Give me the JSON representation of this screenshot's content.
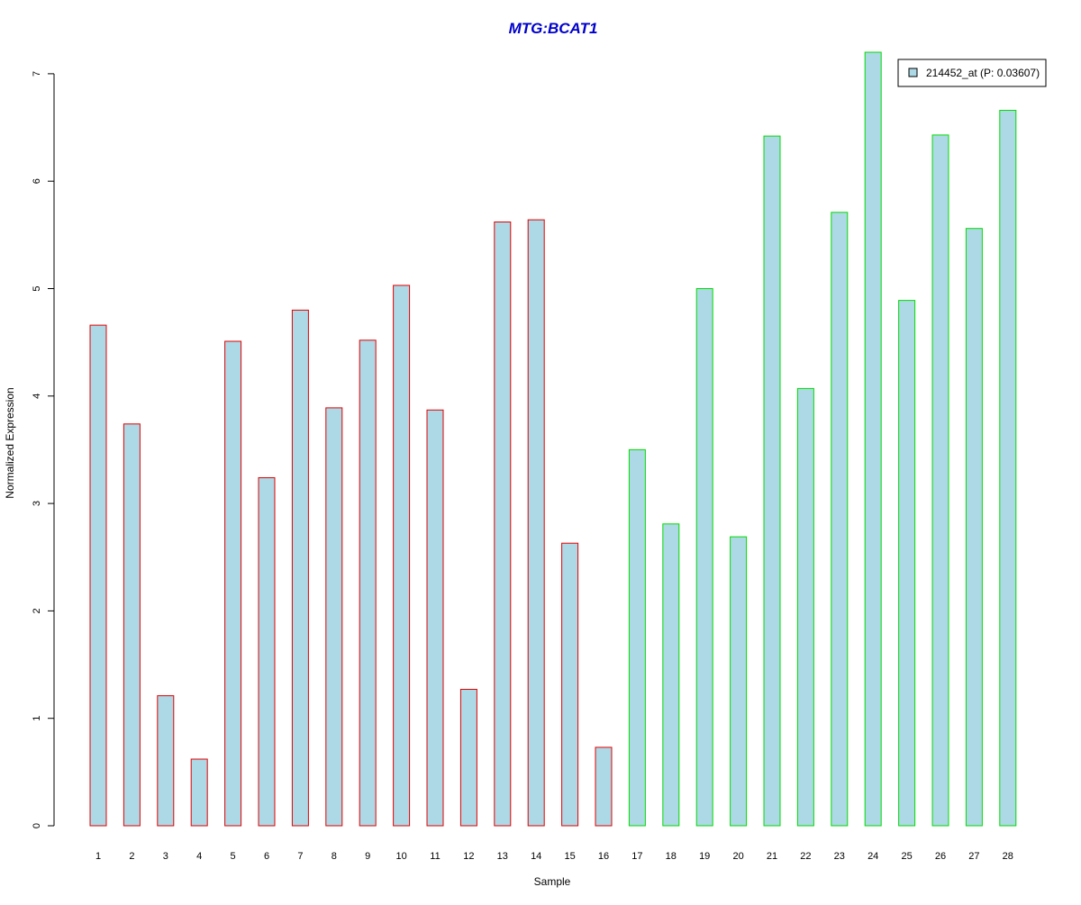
{
  "chart_data": {
    "type": "bar",
    "title": "MTG:BCAT1",
    "xlabel": "Sample",
    "ylabel": "Normalized Expression",
    "ylim": [
      0,
      7.2
    ],
    "yticks": [
      0,
      1,
      2,
      3,
      4,
      5,
      6,
      7
    ],
    "categories": [
      "1",
      "2",
      "3",
      "4",
      "5",
      "6",
      "7",
      "8",
      "9",
      "10",
      "11",
      "12",
      "13",
      "14",
      "15",
      "16",
      "17",
      "18",
      "19",
      "20",
      "21",
      "22",
      "23",
      "24",
      "25",
      "26",
      "27",
      "28"
    ],
    "series": [
      {
        "name": "214452_at (P: 0.03607)",
        "values": [
          4.66,
          3.74,
          1.21,
          0.62,
          4.51,
          3.24,
          4.8,
          3.89,
          4.52,
          5.03,
          3.87,
          1.27,
          5.62,
          5.64,
          2.63,
          0.73,
          3.5,
          2.81,
          5.0,
          2.69,
          6.42,
          4.07,
          5.71,
          7.2,
          4.89,
          6.43,
          5.56,
          6.66
        ]
      }
    ],
    "groups": [
      {
        "samples": [
          1,
          16
        ],
        "border_color": "#e00000"
      },
      {
        "samples": [
          17,
          28
        ],
        "border_color": "#00dd00"
      }
    ],
    "legend": {
      "label": "214452_at (P: 0.03607)",
      "placement": "top-right"
    },
    "grid": false
  },
  "colors": {
    "title": "#0000cc",
    "bar_fill": "#add8e6",
    "axis": "#000000"
  }
}
